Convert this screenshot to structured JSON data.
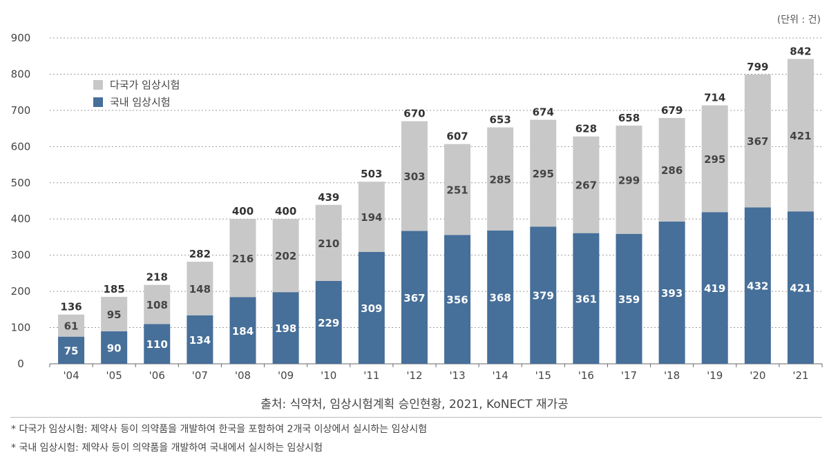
{
  "unit_label": "(단위 : 건)",
  "source": "출처: 식약처, 임상시험계획 승인현황, 2021, KoNECT 재가공",
  "notes": [
    "* 다국가 임상시험: 제약사 등이 의약품을 개발하여 한국을 포함하여 2개국 이상에서 실시하는 임상시험",
    "* 국내 임상시험: 제약사 등이 의약품을 개발하여 국내에서 실시하는 임상시험"
  ],
  "colors": {
    "multinational": "#c8c8c8",
    "domestic": "#466f99"
  },
  "chart_data": {
    "type": "bar",
    "stacked": true,
    "categories": [
      "'04",
      "'05",
      "'06",
      "'07",
      "'08",
      "'09",
      "'10",
      "'11",
      "'12",
      "'13",
      "'14",
      "'15",
      "'16",
      "'17",
      "'18",
      "'19",
      "'20",
      "'21"
    ],
    "series": [
      {
        "name": "국내 임상시험",
        "values": [
          75,
          90,
          110,
          134,
          184,
          198,
          229,
          309,
          367,
          356,
          368,
          379,
          361,
          359,
          393,
          419,
          432,
          421
        ]
      },
      {
        "name": "다국가 임상시험",
        "values": [
          61,
          95,
          108,
          148,
          216,
          202,
          210,
          194,
          303,
          251,
          285,
          295,
          267,
          299,
          286,
          295,
          367,
          421
        ]
      }
    ],
    "totals": [
      136,
      185,
      218,
      282,
      400,
      400,
      439,
      503,
      670,
      607,
      653,
      674,
      628,
      658,
      679,
      714,
      799,
      842
    ],
    "yticks": [
      0,
      100,
      200,
      300,
      400,
      500,
      600,
      700,
      800,
      900
    ],
    "ylim": [
      0,
      900
    ],
    "grid": true,
    "legend_position": "top-left",
    "legend_order": [
      "다국가 임상시험",
      "국내 임상시험"
    ]
  }
}
